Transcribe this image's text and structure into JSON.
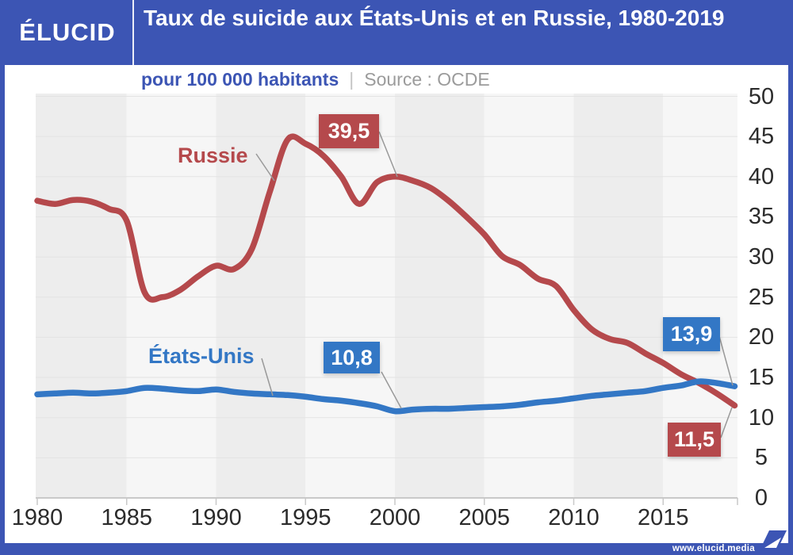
{
  "page": {
    "brand": "ÉLUCID",
    "title": "Taux de suicide aux États-Unis et en Russie, 1980-2019",
    "subtitle_unit": "pour 100 000 habitants",
    "subtitle_divider": "|",
    "subtitle_source": "Source : OCDE",
    "footer_url": "www.elucid.media"
  },
  "colors": {
    "brand_blue": "#3C55B4",
    "russia_red": "#B5494C",
    "us_blue": "#3377C5",
    "band_dark": "#EDEDED",
    "band_light": "#F6F6F6",
    "gridline": "#E3E3E3",
    "axis": "#C9C9C9",
    "tick_text": "#2B2B2B",
    "connector": "#999999"
  },
  "chart_data": {
    "type": "line",
    "title": "Taux de suicide aux États-Unis et en Russie, 1980-2019",
    "ylabel": "pour 100 000 habitants",
    "source": "OCDE",
    "xlim": [
      1980,
      2019
    ],
    "ylim": [
      0,
      50
    ],
    "xticks": [
      1980,
      1985,
      1990,
      1995,
      2000,
      2005,
      2010,
      2015
    ],
    "yticks": [
      0,
      5,
      10,
      15,
      20,
      25,
      30,
      35,
      40,
      45,
      50
    ],
    "grid": "horizontal",
    "background_bands": "alternating 5-year vertical stripes",
    "legend_position": "inline-labels",
    "x": [
      1980,
      1981,
      1982,
      1983,
      1984,
      1985,
      1986,
      1987,
      1988,
      1989,
      1990,
      1991,
      1992,
      1993,
      1994,
      1995,
      1996,
      1997,
      1998,
      1999,
      2000,
      2001,
      2002,
      2003,
      2004,
      2005,
      2006,
      2007,
      2008,
      2009,
      2010,
      2011,
      2012,
      2013,
      2014,
      2015,
      2016,
      2017,
      2018,
      2019
    ],
    "series": [
      {
        "name": "Russie",
        "color": "#B5494C",
        "values": [
          37.0,
          36.6,
          37.1,
          36.9,
          36.0,
          34.5,
          25.6,
          25.0,
          25.9,
          27.6,
          28.9,
          28.5,
          31.0,
          38.1,
          44.6,
          44.1,
          42.6,
          40.0,
          36.6,
          39.3,
          40.0,
          39.5,
          38.6,
          37.0,
          35.0,
          32.8,
          30.1,
          29.0,
          27.3,
          26.4,
          23.4,
          21.0,
          19.8,
          19.3,
          18.0,
          16.8,
          15.4,
          14.3,
          13.0,
          11.5
        ]
      },
      {
        "name": "États-Unis",
        "color": "#3377C5",
        "values": [
          12.9,
          13.0,
          13.1,
          13.0,
          13.1,
          13.3,
          13.7,
          13.6,
          13.4,
          13.3,
          13.5,
          13.2,
          13.0,
          12.9,
          12.8,
          12.6,
          12.3,
          12.1,
          11.8,
          11.4,
          10.8,
          11.0,
          11.1,
          11.1,
          11.2,
          11.3,
          11.4,
          11.6,
          11.9,
          12.1,
          12.4,
          12.7,
          12.9,
          13.1,
          13.3,
          13.7,
          14.0,
          14.5,
          14.3,
          13.9
        ]
      }
    ],
    "annotations": [
      {
        "series": "Russie",
        "year": 2001,
        "value": 39.5,
        "label": "39,5"
      },
      {
        "series": "États-Unis",
        "year": 2000,
        "value": 10.8,
        "label": "10,8"
      },
      {
        "series": "États-Unis",
        "year": 2019,
        "value": 13.9,
        "label": "13,9"
      },
      {
        "series": "Russie",
        "year": 2019,
        "value": 11.5,
        "label": "11,5"
      }
    ]
  }
}
